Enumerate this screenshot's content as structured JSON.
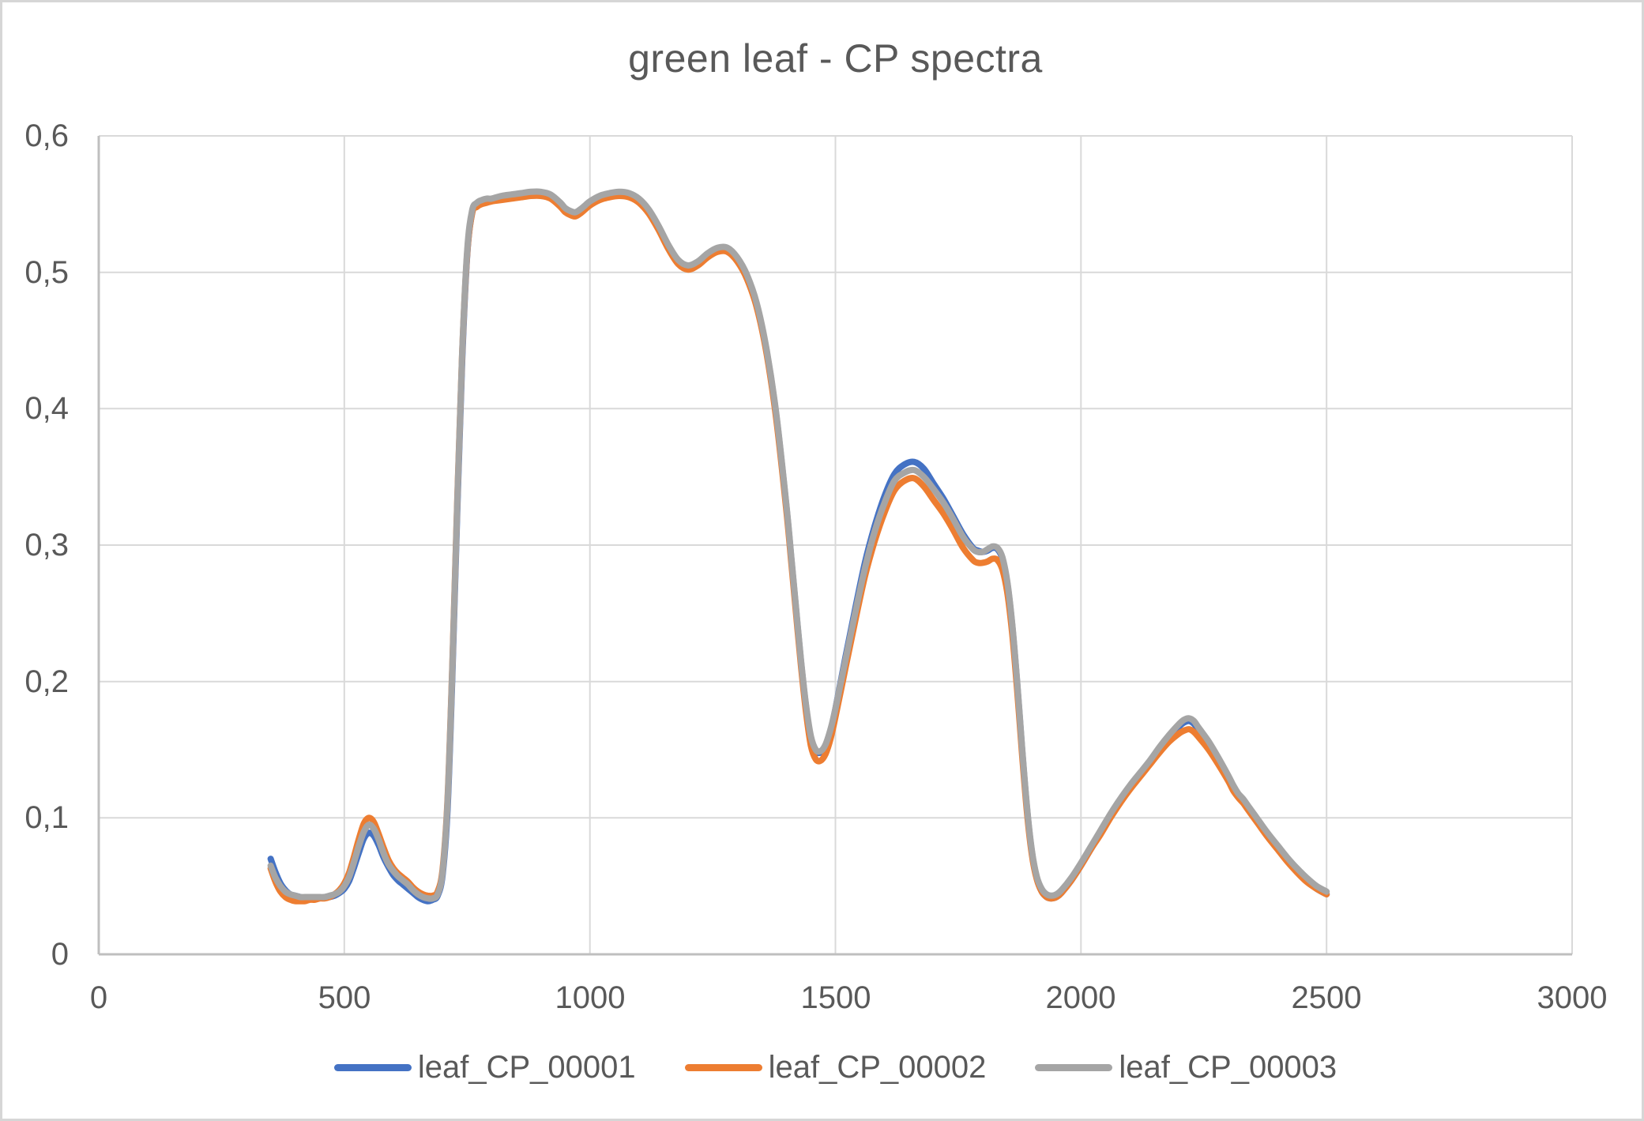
{
  "title": "green leaf - CP spectra",
  "colors": {
    "text": "#595959",
    "gridline": "#d9d9d9",
    "axis": "#bfbfbf",
    "background": "#ffffff",
    "border": "#d6d6d6",
    "series_blue": "#4472C4",
    "series_orange": "#ED7D31",
    "series_gray": "#A5A5A5"
  },
  "y_axis": {
    "tick_labels": [
      "0",
      "0,1",
      "0,2",
      "0,3",
      "0,4",
      "0,5",
      "0,6"
    ]
  },
  "x_axis": {
    "tick_labels": [
      "0",
      "500",
      "1000",
      "1500",
      "2000",
      "2500",
      "3000"
    ]
  },
  "chart_data": {
    "type": "line",
    "title": "green leaf - CP spectra",
    "xlabel": "",
    "ylabel": "",
    "x_range": [
      0,
      3000
    ],
    "y_range": [
      0,
      0.6
    ],
    "grid": true,
    "legend_position": "bottom",
    "x": [
      350,
      360,
      370,
      380,
      390,
      400,
      410,
      420,
      430,
      440,
      450,
      460,
      470,
      480,
      490,
      500,
      510,
      520,
      530,
      540,
      550,
      560,
      570,
      580,
      590,
      600,
      610,
      620,
      630,
      640,
      650,
      660,
      670,
      680,
      690,
      700,
      710,
      720,
      730,
      740,
      750,
      760,
      770,
      780,
      790,
      800,
      820,
      840,
      860,
      880,
      900,
      920,
      940,
      950,
      960,
      970,
      980,
      990,
      1000,
      1020,
      1040,
      1060,
      1080,
      1100,
      1120,
      1140,
      1160,
      1180,
      1200,
      1220,
      1240,
      1260,
      1280,
      1300,
      1320,
      1340,
      1360,
      1380,
      1400,
      1410,
      1420,
      1430,
      1440,
      1450,
      1460,
      1470,
      1480,
      1490,
      1500,
      1520,
      1540,
      1560,
      1580,
      1600,
      1620,
      1640,
      1660,
      1680,
      1700,
      1720,
      1740,
      1760,
      1780,
      1790,
      1800,
      1810,
      1820,
      1830,
      1840,
      1850,
      1860,
      1870,
      1880,
      1890,
      1900,
      1910,
      1920,
      1930,
      1940,
      1950,
      1960,
      1980,
      2000,
      2020,
      2040,
      2060,
      2080,
      2100,
      2120,
      2140,
      2160,
      2180,
      2200,
      2210,
      2220,
      2230,
      2240,
      2260,
      2280,
      2300,
      2310,
      2320,
      2330,
      2340,
      2360,
      2380,
      2400,
      2420,
      2440,
      2460,
      2480,
      2500
    ],
    "series": [
      {
        "name": "leaf_CP_00001",
        "color": "#4472C4",
        "values": [
          0.07,
          0.06,
          0.052,
          0.047,
          0.044,
          0.043,
          0.042,
          0.041,
          0.041,
          0.041,
          0.041,
          0.042,
          0.042,
          0.043,
          0.045,
          0.048,
          0.054,
          0.064,
          0.075,
          0.085,
          0.089,
          0.087,
          0.08,
          0.071,
          0.064,
          0.058,
          0.054,
          0.051,
          0.048,
          0.045,
          0.042,
          0.04,
          0.039,
          0.04,
          0.043,
          0.058,
          0.105,
          0.205,
          0.325,
          0.435,
          0.512,
          0.543,
          0.55,
          0.552,
          0.553,
          0.553,
          0.555,
          0.556,
          0.557,
          0.558,
          0.558,
          0.556,
          0.55,
          0.546,
          0.544,
          0.543,
          0.545,
          0.548,
          0.551,
          0.555,
          0.557,
          0.558,
          0.557,
          0.553,
          0.545,
          0.533,
          0.519,
          0.508,
          0.504,
          0.507,
          0.513,
          0.517,
          0.517,
          0.51,
          0.497,
          0.476,
          0.442,
          0.394,
          0.329,
          0.291,
          0.252,
          0.214,
          0.182,
          0.158,
          0.149,
          0.148,
          0.153,
          0.164,
          0.18,
          0.217,
          0.253,
          0.287,
          0.314,
          0.336,
          0.352,
          0.359,
          0.361,
          0.356,
          0.345,
          0.334,
          0.321,
          0.308,
          0.298,
          0.296,
          0.295,
          0.296,
          0.298,
          0.297,
          0.29,
          0.272,
          0.241,
          0.199,
          0.151,
          0.107,
          0.075,
          0.056,
          0.046,
          0.042,
          0.041,
          0.042,
          0.045,
          0.054,
          0.065,
          0.077,
          0.089,
          0.101,
          0.112,
          0.122,
          0.131,
          0.14,
          0.15,
          0.159,
          0.167,
          0.17,
          0.171,
          0.169,
          0.164,
          0.154,
          0.142,
          0.129,
          0.122,
          0.116,
          0.112,
          0.107,
          0.097,
          0.087,
          0.078,
          0.069,
          0.061,
          0.054,
          0.048,
          0.044
        ]
      },
      {
        "name": "leaf_CP_00002",
        "color": "#ED7D31",
        "values": [
          0.063,
          0.053,
          0.046,
          0.042,
          0.04,
          0.039,
          0.039,
          0.039,
          0.04,
          0.04,
          0.041,
          0.041,
          0.042,
          0.044,
          0.047,
          0.052,
          0.06,
          0.072,
          0.085,
          0.096,
          0.1,
          0.097,
          0.088,
          0.078,
          0.069,
          0.063,
          0.059,
          0.056,
          0.053,
          0.049,
          0.046,
          0.044,
          0.043,
          0.043,
          0.046,
          0.062,
          0.112,
          0.212,
          0.332,
          0.44,
          0.513,
          0.543,
          0.548,
          0.55,
          0.551,
          0.552,
          0.553,
          0.554,
          0.555,
          0.556,
          0.556,
          0.554,
          0.548,
          0.544,
          0.542,
          0.541,
          0.543,
          0.546,
          0.549,
          0.553,
          0.555,
          0.556,
          0.555,
          0.551,
          0.543,
          0.531,
          0.517,
          0.506,
          0.502,
          0.505,
          0.511,
          0.515,
          0.515,
          0.508,
          0.495,
          0.474,
          0.44,
          0.391,
          0.326,
          0.288,
          0.249,
          0.211,
          0.178,
          0.153,
          0.143,
          0.142,
          0.147,
          0.158,
          0.174,
          0.209,
          0.244,
          0.277,
          0.303,
          0.324,
          0.34,
          0.347,
          0.349,
          0.343,
          0.333,
          0.323,
          0.311,
          0.298,
          0.289,
          0.287,
          0.287,
          0.288,
          0.29,
          0.289,
          0.282,
          0.265,
          0.235,
          0.194,
          0.147,
          0.104,
          0.073,
          0.055,
          0.046,
          0.042,
          0.041,
          0.042,
          0.045,
          0.054,
          0.065,
          0.077,
          0.088,
          0.1,
          0.111,
          0.121,
          0.13,
          0.139,
          0.148,
          0.156,
          0.162,
          0.164,
          0.165,
          0.163,
          0.159,
          0.15,
          0.139,
          0.127,
          0.12,
          0.115,
          0.111,
          0.106,
          0.096,
          0.086,
          0.077,
          0.068,
          0.06,
          0.053,
          0.048,
          0.044
        ]
      },
      {
        "name": "leaf_CP_00003",
        "color": "#A5A5A5",
        "values": [
          0.065,
          0.056,
          0.05,
          0.046,
          0.044,
          0.043,
          0.042,
          0.042,
          0.042,
          0.042,
          0.042,
          0.042,
          0.043,
          0.044,
          0.046,
          0.05,
          0.057,
          0.068,
          0.08,
          0.09,
          0.095,
          0.092,
          0.084,
          0.074,
          0.066,
          0.061,
          0.057,
          0.054,
          0.051,
          0.047,
          0.044,
          0.042,
          0.041,
          0.041,
          0.044,
          0.06,
          0.11,
          0.21,
          0.33,
          0.44,
          0.515,
          0.545,
          0.551,
          0.553,
          0.554,
          0.554,
          0.556,
          0.557,
          0.558,
          0.559,
          0.559,
          0.557,
          0.551,
          0.547,
          0.545,
          0.544,
          0.546,
          0.549,
          0.552,
          0.556,
          0.558,
          0.559,
          0.558,
          0.554,
          0.546,
          0.534,
          0.52,
          0.509,
          0.505,
          0.508,
          0.514,
          0.518,
          0.518,
          0.511,
          0.498,
          0.477,
          0.443,
          0.395,
          0.33,
          0.292,
          0.253,
          0.215,
          0.183,
          0.16,
          0.15,
          0.149,
          0.154,
          0.165,
          0.18,
          0.215,
          0.25,
          0.283,
          0.31,
          0.331,
          0.347,
          0.353,
          0.355,
          0.35,
          0.341,
          0.331,
          0.319,
          0.306,
          0.297,
          0.295,
          0.295,
          0.297,
          0.299,
          0.298,
          0.291,
          0.273,
          0.242,
          0.2,
          0.152,
          0.108,
          0.076,
          0.057,
          0.048,
          0.044,
          0.043,
          0.044,
          0.047,
          0.056,
          0.067,
          0.079,
          0.091,
          0.103,
          0.114,
          0.124,
          0.133,
          0.142,
          0.152,
          0.161,
          0.169,
          0.172,
          0.173,
          0.171,
          0.166,
          0.156,
          0.144,
          0.131,
          0.124,
          0.118,
          0.114,
          0.109,
          0.099,
          0.089,
          0.08,
          0.071,
          0.063,
          0.056,
          0.05,
          0.046
        ]
      }
    ]
  }
}
